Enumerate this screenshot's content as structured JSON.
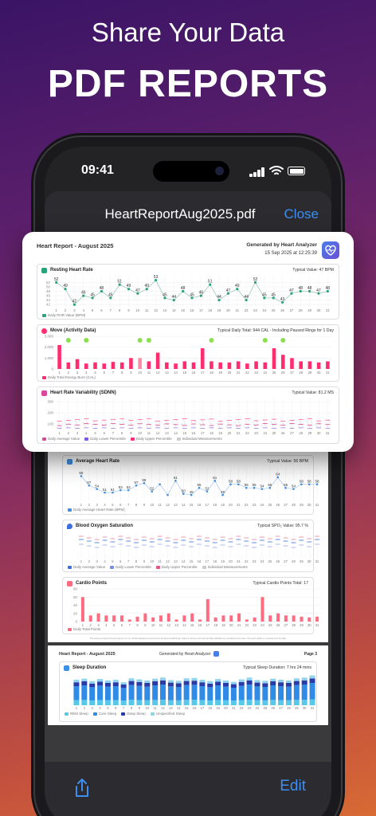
{
  "headline": {
    "line1": "Share Your Data",
    "line2": "PDF REPORTS"
  },
  "status": {
    "time": "09:41"
  },
  "nav": {
    "title": "HeartReportAug2025.pdf",
    "close": "Close"
  },
  "toolbar": {
    "edit": "Edit"
  },
  "report": {
    "title": "Heart Report - August 2025",
    "generated_by": "Generated by Heart Analyzer",
    "generated_at": "15 Sep 2025 at 12:25:39",
    "day_labels": [
      "1",
      "2",
      "3",
      "4",
      "5",
      "6",
      "7",
      "8",
      "9",
      "10",
      "11",
      "12",
      "13",
      "14",
      "15",
      "16",
      "17",
      "18",
      "19",
      "20",
      "21",
      "22",
      "23",
      "24",
      "25",
      "26",
      "27",
      "28",
      "29",
      "30",
      "31"
    ],
    "resting": {
      "title": "Resting Heart Rate",
      "typical": "Typical Value: 47 BPM",
      "legend": "Daily RHR Value (BPM)",
      "y_ticks": [
        "52",
        "50",
        "48",
        "46",
        "44",
        "42"
      ],
      "values": [
        52,
        49,
        42,
        46,
        45,
        48,
        45,
        51,
        49,
        47,
        49,
        53,
        45,
        44,
        48,
        45,
        46,
        51,
        44,
        47,
        49,
        44,
        52,
        45,
        45,
        43,
        47,
        48,
        48,
        47,
        48
      ],
      "labels": [
        "52",
        "49",
        "42",
        "46",
        "45",
        "48",
        "45",
        "51",
        "49",
        "47",
        "49",
        "53",
        "45",
        "44",
        "48",
        "45",
        "46",
        "51",
        "44",
        "47",
        "49",
        "44",
        "52",
        "45",
        "45",
        "43",
        "47",
        "48",
        "48",
        "47",
        "48"
      ]
    },
    "move": {
      "title": "Move (Activity Data)",
      "typical": "Typical Daily Total:  944 CAL - Including Paused Rings for 1 Day",
      "legend": "Daily Total Energy Burn (CAL)",
      "y_ticks": [
        "3,000",
        "2,000",
        "1,000",
        "0"
      ],
      "values": [
        2200,
        600,
        900,
        500,
        600,
        500,
        650,
        600,
        1000,
        1000,
        700,
        1500,
        600,
        500,
        700,
        600,
        1900,
        700,
        600,
        600,
        700,
        500,
        700,
        600,
        1900,
        1300,
        1000,
        700,
        700,
        600,
        700
      ],
      "badges": [
        1,
        3,
        9,
        10,
        17,
        23,
        25
      ]
    },
    "hrv": {
      "title": "Heart Rate Variability (SDNN)",
      "typical": "Typical Value:  81.2 MS",
      "y_ticks": [
        "300",
        "200",
        "100"
      ],
      "legend": [
        "Daily Average Value",
        "Daily Lower Percentile",
        "Daily Upper Percentile",
        "Individual Measurements"
      ]
    },
    "avg_hr": {
      "title": "Average Heart Rate",
      "typical": "Typical Value:  56 BPM",
      "legend": "Daily Average Heart Rate (BPM)",
      "values": [
        65,
        57,
        54,
        51,
        51,
        53,
        53,
        57,
        59,
        52,
        58,
        49,
        61,
        50,
        49,
        55,
        52,
        61,
        49,
        58,
        58,
        55,
        55,
        54,
        55,
        64,
        55,
        54,
        58,
        58,
        58
      ],
      "labels": [
        "65",
        "57",
        "54",
        "51",
        "51",
        "53",
        "53",
        "57",
        "59",
        "52",
        "",
        "",
        "61",
        "50",
        "49",
        "55",
        "52",
        "61",
        "49",
        "58",
        "58",
        "55",
        "55",
        "54",
        "55",
        "64",
        "55",
        "54",
        "58",
        "58",
        "58"
      ]
    },
    "spo2": {
      "title": "Blood Oxygen Saturation",
      "typical": "Typical SPO₂ Value:  95.7 %",
      "legend": [
        "Daily Average Value",
        "Daily Lower Percentile",
        "Daily Upper Percentile",
        "Individual Measurements"
      ]
    },
    "cardio": {
      "title": "Cardio Points",
      "typical": "Typical Cardio Points Total:  17",
      "legend": "Daily Total Points",
      "y_ticks": [
        "80",
        "60",
        "40",
        "20",
        "0"
      ],
      "values": [
        60,
        15,
        20,
        15,
        15,
        15,
        5,
        12,
        20,
        10,
        15,
        20,
        5,
        15,
        20,
        5,
        55,
        10,
        15,
        15,
        20,
        5,
        10,
        60,
        15,
        20,
        15,
        15,
        12,
        10,
        12
      ]
    },
    "footer_note": "This report generated by Heart Analyzer 2.0 (r1) - All data displayed is sourced from the Apple HealthKit app. Values in obscure such as Heart Rate Variability are normalised to the value. This report validity on a tracking is for the data.",
    "page3": {
      "title": "Heart Report - August 2025",
      "generated_by": "Generated by Heart Analyzer",
      "page": "Page 3",
      "sleep_title": "Sleep Duration",
      "sleep_typical": "Typical Sleep Duration:  7 hrs  24 mins",
      "sleep_values": [
        7.2,
        7.5,
        6.8,
        7.4,
        7.0,
        7.2,
        6.5,
        7.6,
        7.3,
        7.0,
        7.5,
        7.8,
        7.1,
        6.9,
        7.6,
        7.7,
        7.2,
        6.8,
        7.4,
        7.0,
        6.6,
        7.3,
        7.8,
        7.1,
        6.9,
        7.5,
        7.2,
        7.0,
        7.6,
        7.8,
        8.4
      ],
      "sleep_legend": [
        "REM Sleep",
        "Core Sleep",
        "Deep Sleep",
        "Unspecified Sleep"
      ]
    }
  },
  "colors": {
    "accent": "#3d8ef0",
    "resting": "#2aa37a",
    "move": "#ff2d6f",
    "hrv": "#d9489a",
    "avg_hr": "#3f8fe0",
    "spo2": "#3d6fe0",
    "cardio": "#ff6b80",
    "badge": "#8be04d"
  }
}
